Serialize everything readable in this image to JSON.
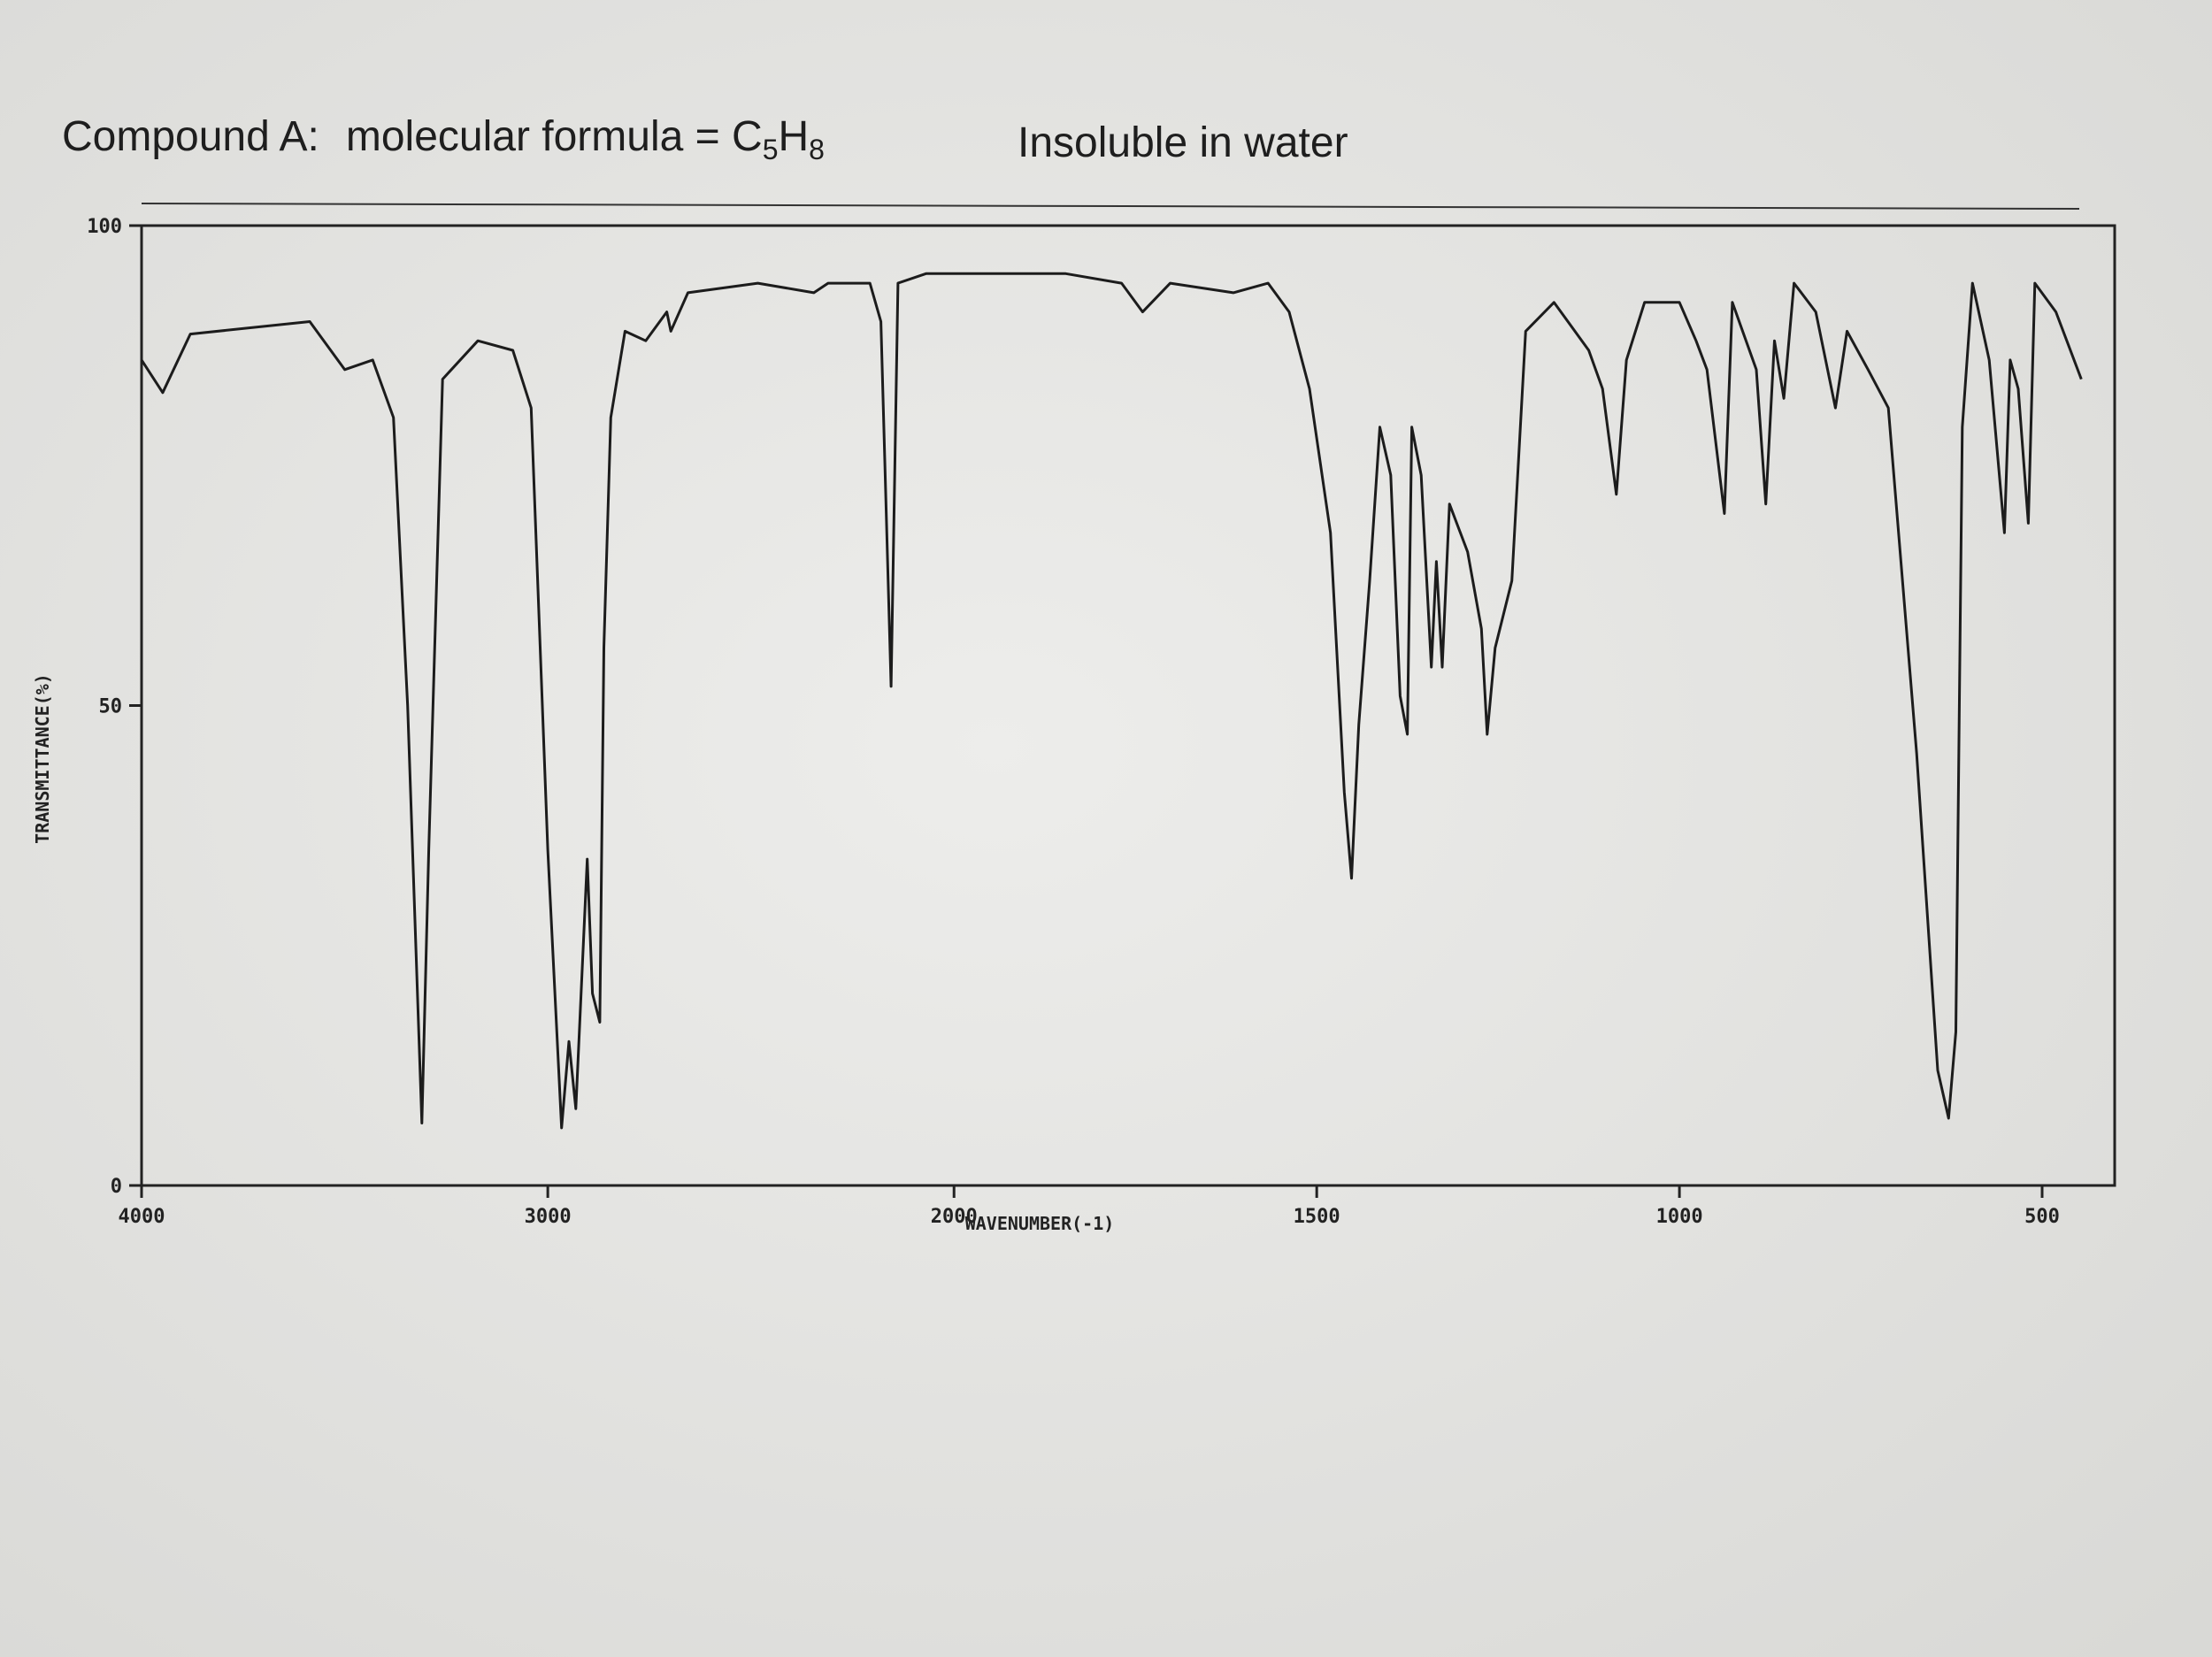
{
  "chart_data": {
    "type": "line",
    "title": [
      "Compound A:",
      "molecular formula = C",
      "5",
      "H",
      "8"
    ],
    "annotation": "Insoluble in water",
    "x_label": "WAVENUMBER(-1)",
    "y_label": "TRANSMITTANCE(%)",
    "xlim": [
      4000,
      400
    ],
    "x_scale_change": 2000,
    "xticks": [
      4000,
      3000,
      2000,
      1500,
      1000,
      500
    ],
    "ylim": [
      0,
      100
    ],
    "yticks": [
      0,
      50,
      100
    ],
    "grid": false,
    "x": [
      4000,
      3948,
      3880,
      3586,
      3500,
      3431,
      3380,
      3345,
      3310,
      3293,
      3259,
      3172,
      3086,
      3041,
      3000,
      2966,
      2948,
      2931,
      2903,
      2890,
      2872,
      2862,
      2845,
      2810,
      2759,
      2707,
      2697,
      2655,
      2483,
      2345,
      2310,
      2207,
      2180,
      2155,
      2138,
      2069,
      2000,
      1846,
      1769,
      1740,
      1702,
      1615,
      1567,
      1538,
      1510,
      1481,
      1462,
      1452,
      1442,
      1427,
      1413,
      1398,
      1385,
      1375,
      1369,
      1356,
      1342,
      1335,
      1327,
      1317,
      1292,
      1273,
      1265,
      1254,
      1231,
      1212,
      1173,
      1125,
      1106,
      1087,
      1073,
      1048,
      1000,
      977,
      962,
      938,
      927,
      894,
      881,
      869,
      856,
      842,
      812,
      785,
      769,
      740,
      712,
      673,
      644,
      629,
      619,
      610,
      596,
      573,
      552,
      544,
      533,
      519,
      510,
      481,
      446
    ],
    "series": [
      {
        "color": "#1c1c1c",
        "values": [
          86,
          82.6,
          88.7,
          90,
          85,
          86,
          80,
          50,
          6.5,
          35,
          84,
          88,
          87,
          81,
          35,
          6,
          15,
          8,
          34,
          20,
          17,
          56,
          80,
          89,
          88,
          91,
          89,
          93,
          94,
          93,
          94,
          94,
          90,
          52,
          94,
          95,
          95,
          95,
          94,
          91,
          94,
          93,
          94,
          91,
          83,
          68,
          41,
          32,
          48,
          63,
          79,
          74,
          51,
          47,
          79,
          74,
          54,
          65,
          54,
          71,
          66,
          58,
          47,
          56,
          63,
          89,
          92,
          87,
          83,
          72,
          86,
          92,
          92,
          88,
          85,
          70,
          92,
          85,
          71,
          88,
          82,
          94,
          91,
          81,
          89,
          85,
          81,
          45,
          12,
          7,
          16,
          79,
          94,
          86,
          68,
          86,
          83,
          69,
          94,
          91,
          84
        ]
      }
    ]
  }
}
